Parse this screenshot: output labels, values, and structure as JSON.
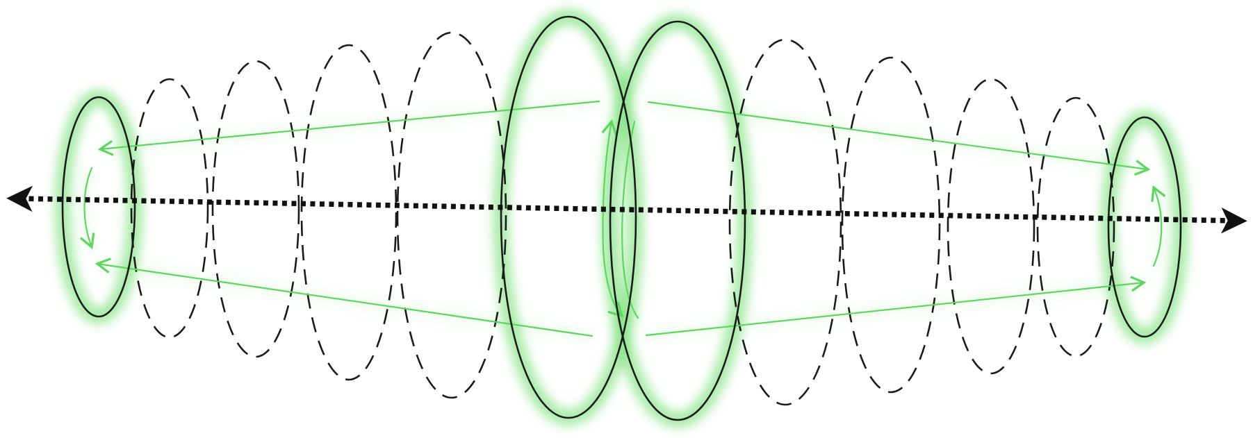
{
  "colors": {
    "background": "#ffffff",
    "ring": "#1a1a1a",
    "axis": "#111111",
    "field_line": "#5cd65c",
    "glow": "#6bdc6b"
  },
  "diagram": {
    "description_name": "coil-field-diagram",
    "rings": [
      {
        "style": "solid",
        "glow": true
      },
      {
        "style": "dashed",
        "glow": false
      },
      {
        "style": "dashed",
        "glow": false
      },
      {
        "style": "dashed",
        "glow": false
      },
      {
        "style": "dashed",
        "glow": false
      },
      {
        "style": "solid",
        "glow": true
      },
      {
        "style": "solid",
        "glow": true
      },
      {
        "style": "dashed",
        "glow": false
      },
      {
        "style": "dashed",
        "glow": false
      },
      {
        "style": "dashed",
        "glow": false
      },
      {
        "style": "dashed",
        "glow": false
      },
      {
        "style": "solid",
        "glow": true
      }
    ],
    "axis": {
      "arrowheads": [
        "left",
        "right"
      ],
      "style": "dotted"
    },
    "field_lines": {
      "count": 4,
      "arrow_direction": "outward"
    }
  }
}
